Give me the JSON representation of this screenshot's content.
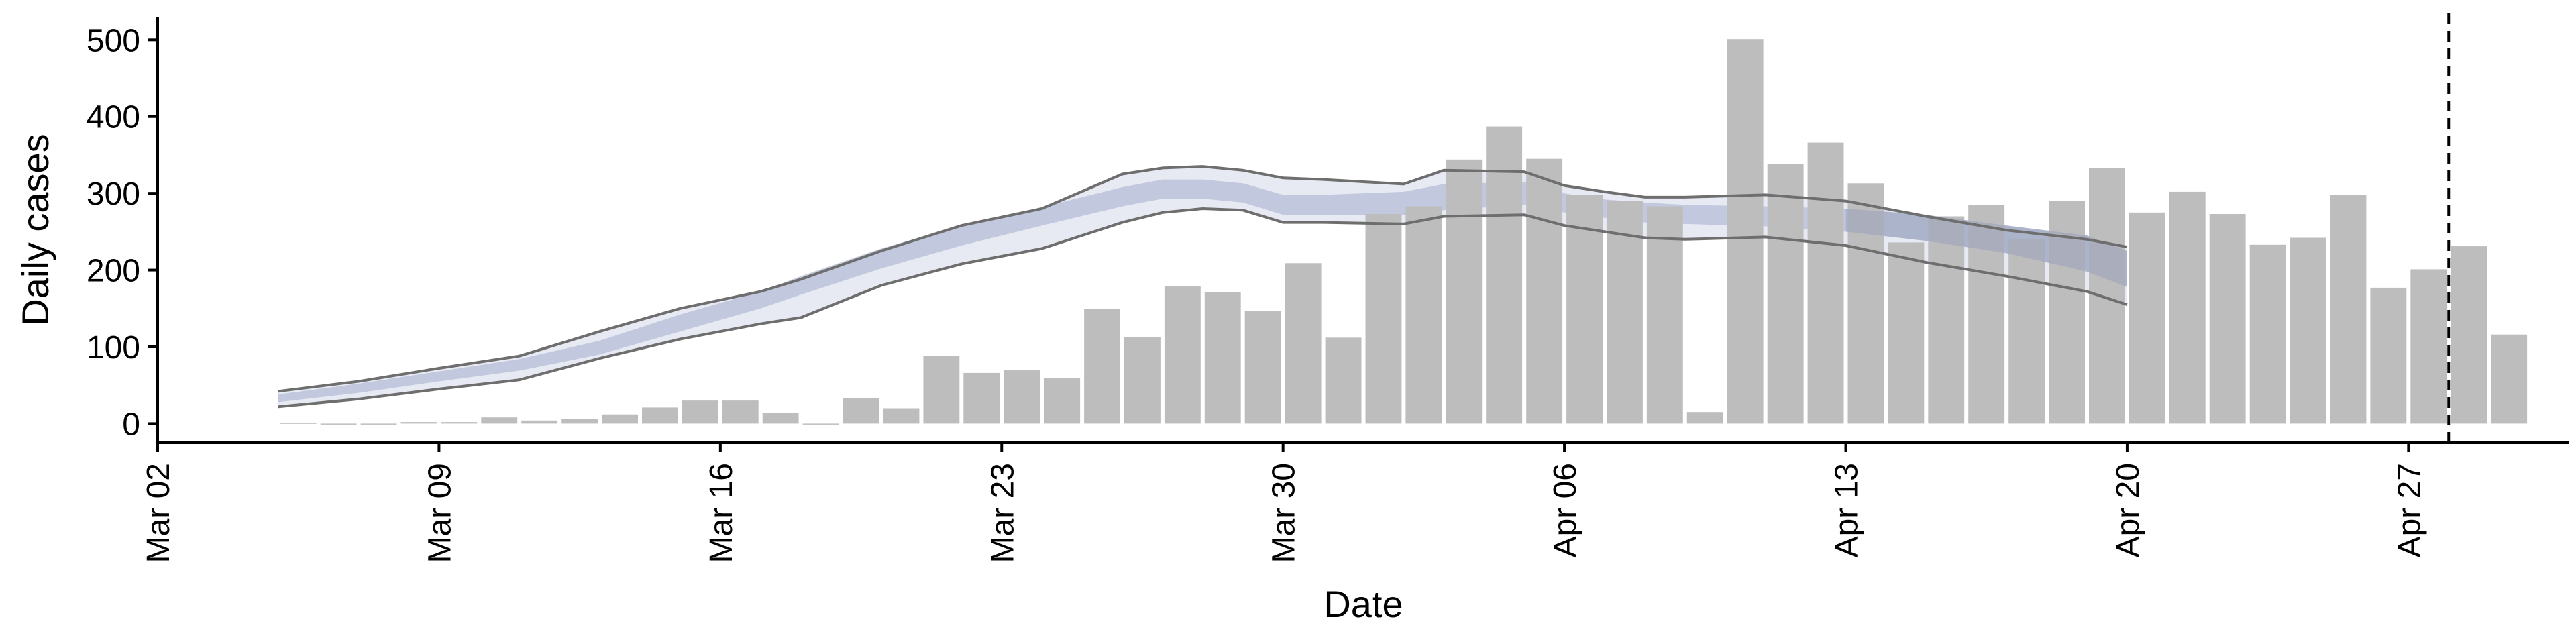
{
  "chart_data": {
    "type": "bar",
    "title": "",
    "xlabel": "Date",
    "ylabel": "Daily cases",
    "x_tick_labels": [
      "Mar 02",
      "Mar 09",
      "Mar 16",
      "Mar 23",
      "Mar 30",
      "Apr 06",
      "Apr 13",
      "Apr 20",
      "Apr 27"
    ],
    "y_ticks": [
      0,
      100,
      200,
      300,
      400,
      500
    ],
    "ylim": [
      -25,
      530
    ],
    "xlim": [
      "2020-03-02",
      "2020-05-01"
    ],
    "grid": false,
    "legend": "none",
    "colors": {
      "bars": "#bdbdbd",
      "outer_band": "#e8eaf3",
      "inner_band": "#c2c9de",
      "border_lines": "#6e6e6e",
      "projection_band": "#9aa3bb",
      "cutoff_line": "#000000"
    },
    "bars": {
      "dates": [
        "2020-03-05",
        "2020-03-06",
        "2020-03-07",
        "2020-03-08",
        "2020-03-09",
        "2020-03-10",
        "2020-03-11",
        "2020-03-12",
        "2020-03-13",
        "2020-03-14",
        "2020-03-15",
        "2020-03-16",
        "2020-03-17",
        "2020-03-18",
        "2020-03-19",
        "2020-03-20",
        "2020-03-21",
        "2020-03-22",
        "2020-03-23",
        "2020-03-24",
        "2020-03-25",
        "2020-03-26",
        "2020-03-27",
        "2020-03-28",
        "2020-03-29",
        "2020-03-30",
        "2020-03-31",
        "2020-04-01",
        "2020-04-02",
        "2020-04-03",
        "2020-04-04",
        "2020-04-05",
        "2020-04-06",
        "2020-04-07",
        "2020-04-08",
        "2020-04-09",
        "2020-04-10",
        "2020-04-11",
        "2020-04-12",
        "2020-04-13",
        "2020-04-14",
        "2020-04-15",
        "2020-04-16",
        "2020-04-17",
        "2020-04-18",
        "2020-04-19",
        "2020-04-20",
        "2020-04-21",
        "2020-04-22",
        "2020-04-23",
        "2020-04-24",
        "2020-04-25",
        "2020-04-26",
        "2020-04-27",
        "2020-04-28",
        "2020-04-29"
      ],
      "values": [
        1,
        0,
        0,
        2,
        2,
        8,
        4,
        6,
        12,
        21,
        30,
        30,
        14,
        0,
        33,
        20,
        88,
        66,
        70,
        59,
        149,
        113,
        179,
        171,
        147,
        209,
        112,
        273,
        283,
        344,
        387,
        345,
        298,
        290,
        283,
        15,
        501,
        338,
        366,
        313,
        236,
        270,
        285,
        240,
        290,
        333,
        275,
        302,
        273,
        233,
        242,
        298,
        177,
        201,
        231,
        116
      ]
    },
    "estimate": {
      "dates": [
        "2020-03-05",
        "2020-03-07",
        "2020-03-09",
        "2020-03-11",
        "2020-03-13",
        "2020-03-15",
        "2020-03-17",
        "2020-03-18",
        "2020-03-20",
        "2020-03-22",
        "2020-03-24",
        "2020-03-26",
        "2020-03-27",
        "2020-03-28",
        "2020-03-29",
        "2020-03-30",
        "2020-03-31",
        "2020-04-02",
        "2020-04-03",
        "2020-04-05",
        "2020-04-06",
        "2020-04-07",
        "2020-04-08",
        "2020-04-09",
        "2020-04-11",
        "2020-04-13",
        "2020-04-15",
        "2020-04-17",
        "2020-04-19",
        "2020-04-20"
      ],
      "median": [
        32,
        45,
        60,
        75,
        98,
        130,
        160,
        180,
        215,
        245,
        270,
        295,
        305,
        305,
        300,
        285,
        285,
        288,
        295,
        300,
        288,
        280,
        275,
        272,
        270,
        265,
        255,
        240,
        222,
        200
      ],
      "inner_lower": [
        28,
        40,
        55,
        69,
        90,
        120,
        150,
        168,
        202,
        232,
        258,
        283,
        293,
        293,
        288,
        272,
        272,
        272,
        278,
        285,
        275,
        268,
        262,
        260,
        257,
        250,
        238,
        222,
        198,
        178
      ],
      "inner_upper": [
        38,
        52,
        68,
        84,
        108,
        142,
        172,
        192,
        228,
        258,
        282,
        308,
        318,
        318,
        313,
        298,
        298,
        302,
        312,
        315,
        300,
        292,
        288,
        285,
        283,
        280,
        272,
        258,
        245,
        225
      ],
      "lower": [
        22,
        32,
        45,
        57,
        85,
        110,
        130,
        138,
        180,
        208,
        228,
        262,
        275,
        280,
        278,
        262,
        262,
        260,
        270,
        272,
        258,
        250,
        242,
        240,
        243,
        232,
        210,
        192,
        172,
        155
      ],
      "upper": [
        42,
        55,
        72,
        88,
        120,
        150,
        172,
        188,
        225,
        258,
        280,
        325,
        333,
        335,
        330,
        320,
        318,
        312,
        330,
        328,
        310,
        302,
        295,
        295,
        298,
        290,
        270,
        252,
        240,
        230
      ]
    },
    "cutoff_date": "2020-04-28"
  }
}
